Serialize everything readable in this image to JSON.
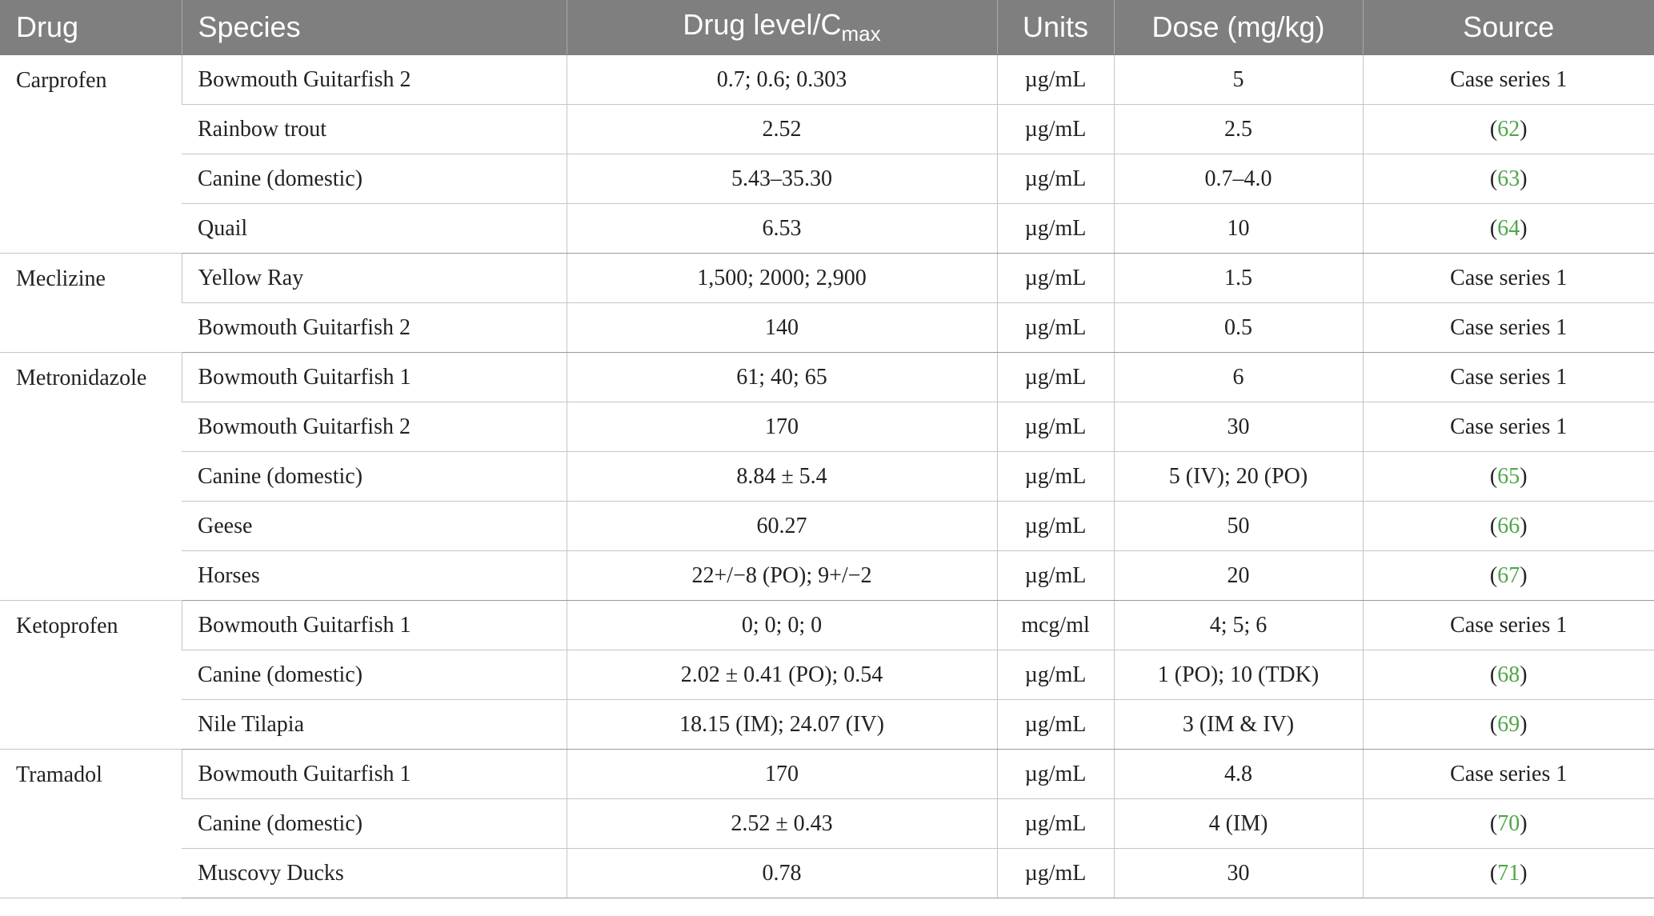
{
  "header": {
    "drug": "Drug",
    "species": "Species",
    "drug_level_main": "Drug level/C",
    "drug_level_sub": "max",
    "units": "Units",
    "dose": "Dose (mg/kg)",
    "source": "Source"
  },
  "colors": {
    "header_bg": "#7f7f7f",
    "header_text": "#ffffff",
    "reference_link": "#4fa64a"
  },
  "groups": [
    {
      "drug": "Carprofen",
      "rows": [
        {
          "species": "Bowmouth Guitarfish 2",
          "level": "0.7; 0.6; 0.303",
          "units": "µg/mL",
          "dose": "5",
          "source": "Case series 1"
        },
        {
          "species": "Rainbow trout",
          "level": "2.52",
          "units": "µg/mL",
          "dose": "2.5",
          "source_ref": "62"
        },
        {
          "species": "Canine (domestic)",
          "level": "5.43–35.30",
          "units": "µg/mL",
          "dose": "0.7–4.0",
          "source_ref": "63"
        },
        {
          "species": "Quail",
          "level": "6.53",
          "units": "µg/mL",
          "dose": "10",
          "source_ref": "64"
        }
      ]
    },
    {
      "drug": "Meclizine",
      "rows": [
        {
          "species": "Yellow Ray",
          "level": "1,500; 2000; 2,900",
          "units": "µg/mL",
          "dose": "1.5",
          "source": "Case series 1"
        },
        {
          "species": "Bowmouth Guitarfish 2",
          "level": "140",
          "units": "µg/mL",
          "dose": "0.5",
          "source": "Case series 1"
        }
      ]
    },
    {
      "drug": "Metronidazole",
      "rows": [
        {
          "species": "Bowmouth Guitarfish 1",
          "level": "61; 40; 65",
          "units": "µg/mL",
          "dose": "6",
          "source": "Case series 1"
        },
        {
          "species": "Bowmouth Guitarfish 2",
          "level": "170",
          "units": "µg/mL",
          "dose": "30",
          "source": "Case series 1"
        },
        {
          "species": "Canine (domestic)",
          "level": "8.84 ± 5.4",
          "units": "µg/mL",
          "dose": "5 (IV); 20 (PO)",
          "source_ref": "65"
        },
        {
          "species": "Geese",
          "level": "60.27",
          "units": "µg/mL",
          "dose": "50",
          "source_ref": "66"
        },
        {
          "species": "Horses",
          "level": "22+/−8 (PO); 9+/−2",
          "units": "µg/mL",
          "dose": "20",
          "source_ref": "67"
        }
      ]
    },
    {
      "drug": "Ketoprofen",
      "rows": [
        {
          "species": "Bowmouth Guitarfish 1",
          "level": "0; 0; 0; 0",
          "units": "mcg/ml",
          "dose": "4; 5; 6",
          "source": "Case series 1"
        },
        {
          "species": "Canine (domestic)",
          "level": "2.02 ± 0.41 (PO); 0.54",
          "units": "µg/mL",
          "dose": "1 (PO); 10 (TDK)",
          "source_ref": "68"
        },
        {
          "species": "Nile Tilapia",
          "level": "18.15 (IM); 24.07 (IV)",
          "units": "µg/mL",
          "dose": "3 (IM & IV)",
          "source_ref": "69"
        }
      ]
    },
    {
      "drug": "Tramadol",
      "rows": [
        {
          "species": "Bowmouth Guitarfish 1",
          "level": "170",
          "units": "µg/mL",
          "dose": "4.8",
          "source": "Case series 1"
        },
        {
          "species": "Canine (domestic)",
          "level": "2.52 ± 0.43",
          "units": "µg/mL",
          "dose": "4 (IM)",
          "source_ref": "70"
        },
        {
          "species": "Muscovy Ducks",
          "level": "0.78",
          "units": "µg/mL",
          "dose": "30",
          "source_ref": "71"
        }
      ]
    }
  ]
}
